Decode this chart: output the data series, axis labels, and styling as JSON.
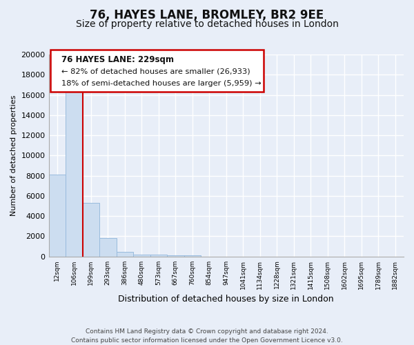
{
  "title": "76, HAYES LANE, BROMLEY, BR2 9EE",
  "subtitle": "Size of property relative to detached houses in London",
  "xlabel": "Distribution of detached houses by size in London",
  "ylabel": "Number of detached properties",
  "bar_labels": [
    "12sqm",
    "106sqm",
    "199sqm",
    "293sqm",
    "386sqm",
    "480sqm",
    "573sqm",
    "667sqm",
    "760sqm",
    "854sqm",
    "947sqm",
    "1041sqm",
    "1134sqm",
    "1228sqm",
    "1321sqm",
    "1415sqm",
    "1508sqm",
    "1602sqm",
    "1695sqm",
    "1789sqm",
    "1882sqm"
  ],
  "bar_heights": [
    8100,
    16600,
    5300,
    1800,
    450,
    200,
    150,
    100,
    100,
    0,
    0,
    0,
    0,
    0,
    0,
    0,
    0,
    0,
    0,
    0,
    0
  ],
  "bar_color": "#ccddf0",
  "bar_edge_color": "#99bbdd",
  "property_line_color": "#cc0000",
  "ylim": [
    0,
    20000
  ],
  "yticks": [
    0,
    2000,
    4000,
    6000,
    8000,
    10000,
    12000,
    14000,
    16000,
    18000,
    20000
  ],
  "annotation_title": "76 HAYES LANE: 229sqm",
  "annotation_line1": "← 82% of detached houses are smaller (26,933)",
  "annotation_line2": "18% of semi-detached houses are larger (5,959) →",
  "annotation_box_color": "#ffffff",
  "annotation_box_edge": "#cc0000",
  "footer_line1": "Contains HM Land Registry data © Crown copyright and database right 2024.",
  "footer_line2": "Contains public sector information licensed under the Open Government Licence v3.0.",
  "background_color": "#e8eef8",
  "plot_bg_color": "#e8eef8",
  "grid_color": "#ffffff",
  "title_fontsize": 12,
  "subtitle_fontsize": 10
}
